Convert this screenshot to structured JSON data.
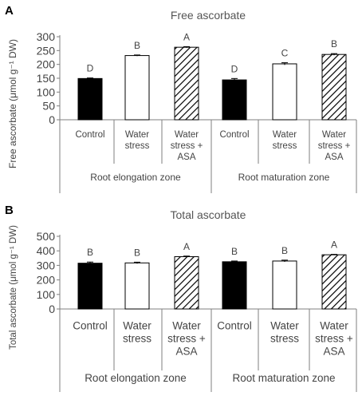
{
  "chart_data": [
    {
      "type": "bar",
      "panel_label": "A",
      "title": "Free ascorbate",
      "ylabel": "Free ascorbate (μmol g⁻¹ DW)",
      "ylim": [
        0,
        300
      ],
      "yticks": [
        0,
        50,
        100,
        150,
        200,
        250,
        300
      ],
      "categories": [
        "Control",
        "Water stress",
        "Water stress + ASA",
        "Control",
        "Water stress",
        "Water stress + ASA"
      ],
      "category_lines": [
        [
          "Control"
        ],
        [
          "Water",
          "stress"
        ],
        [
          "Water",
          "stress +",
          "ASA"
        ],
        [
          "Control"
        ],
        [
          "Water",
          "stress"
        ],
        [
          "Water",
          "stress +",
          "ASA"
        ]
      ],
      "groups": [
        "Root elongation zone",
        "Root maturation zone"
      ],
      "values": [
        149,
        232,
        262,
        144,
        202,
        236
      ],
      "errors": [
        2,
        2,
        2,
        5,
        4,
        3
      ],
      "letters": [
        "D",
        "B",
        "A",
        "D",
        "C",
        "B"
      ],
      "fills": [
        "solid",
        "white",
        "hatch",
        "solid",
        "white",
        "hatch"
      ],
      "grid": false
    },
    {
      "type": "bar",
      "panel_label": "B",
      "title": "Total ascorbate",
      "ylabel": "Total ascorbate (μmol g⁻¹ DW)",
      "ylim": [
        0,
        500
      ],
      "yticks": [
        0,
        100,
        200,
        300,
        400,
        500
      ],
      "categories": [
        "Control",
        "Water stress",
        "Water stress + ASA",
        "Control",
        "Water stress",
        "Water stress + ASA"
      ],
      "category_lines": [
        [
          "Control"
        ],
        [
          "Water",
          "stress"
        ],
        [
          "Water",
          "stress +",
          "ASA"
        ],
        [
          "Control"
        ],
        [
          "Water",
          "stress"
        ],
        [
          "Water",
          "stress +",
          "ASA"
        ]
      ],
      "groups": [
        "Root elongation zone",
        "Root maturation zone"
      ],
      "values": [
        315,
        317,
        360,
        325,
        330,
        373
      ],
      "errors": [
        8,
        5,
        4,
        5,
        6,
        3
      ],
      "letters": [
        "B",
        "B",
        "A",
        "B",
        "B",
        "A"
      ],
      "fills": [
        "solid",
        "white",
        "hatch",
        "solid",
        "white",
        "hatch"
      ],
      "grid": false
    }
  ],
  "colors": {
    "solid": "#000000",
    "axis": "#7f7f7f",
    "text": "#444444",
    "bar_outline": "#000000"
  }
}
